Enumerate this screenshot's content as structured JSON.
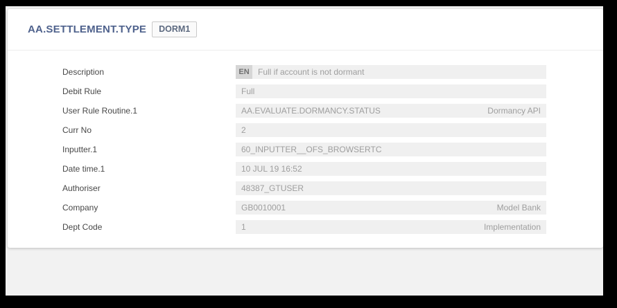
{
  "header": {
    "title": "AA.SETTLEMENT.TYPE",
    "record_id": "DORM1"
  },
  "form": {
    "fields": [
      {
        "label": "Description",
        "lang": "EN",
        "value": "Full if account is not dormant",
        "right": ""
      },
      {
        "label": "Debit Rule",
        "value": "Full",
        "right": ""
      },
      {
        "label": "User Rule Routine.1",
        "value": "AA.EVALUATE.DORMANCY.STATUS",
        "right": "Dormancy API"
      },
      {
        "label": "Curr No",
        "value": "2",
        "right": ""
      },
      {
        "label": "Inputter.1",
        "value": "60_INPUTTER__OFS_BROWSERTC",
        "right": ""
      },
      {
        "label": "Date time.1",
        "value": "10 JUL 19 16:52",
        "right": ""
      },
      {
        "label": "Authoriser",
        "value": "48387_GTUSER",
        "right": ""
      },
      {
        "label": "Company",
        "value": "GB0010001",
        "right": "Model Bank"
      },
      {
        "label": "Dept Code",
        "value": "1",
        "right": "Implementation"
      }
    ]
  },
  "colors": {
    "title_text": "#4e618c",
    "field_box_bg": "#f0f0f0",
    "field_value_text": "#9e9e9e",
    "language_badge_bg": "#d6d6d6",
    "label_text": "#474747",
    "frame": "#000000",
    "page_bg": "#f2f2f2"
  }
}
